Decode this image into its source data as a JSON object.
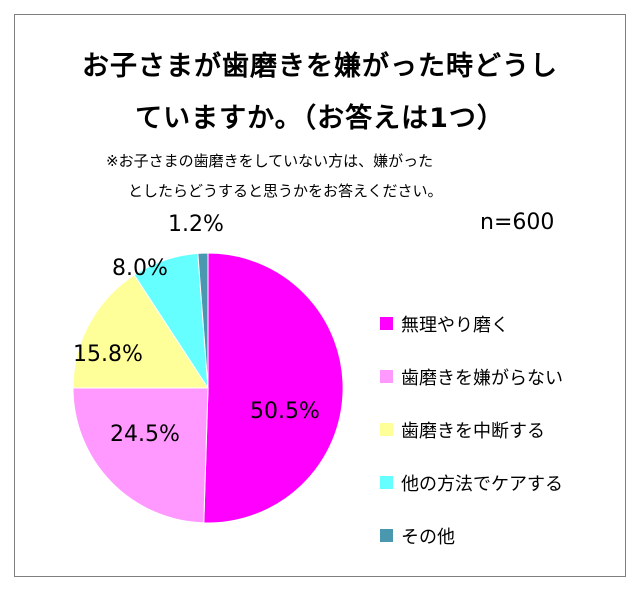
{
  "title_line1": "お子さまが歯磨きを嫌がった時どうし",
  "title_line2": "ていますか。（お答えは1つ）",
  "note_line1": "※お子さまの歯磨きをしていない方は、嫌がった",
  "note_line2": "としたらどうすると思うかをお答えください。",
  "sample_size": "n=600",
  "chart_data": {
    "type": "pie",
    "title": "お子さまが歯磨きを嫌がった時どうしていますか。（お答えは1つ）",
    "subtitle": "※お子さまの歯磨きをしていない方は、嫌がったとしたらどうすると思うかをお答えください。",
    "n": 600,
    "start": "12 o'clock",
    "direction": "clockwise",
    "legend_position": "right",
    "slices": [
      {
        "label": "無理やり磨く",
        "value": 50.5,
        "value_label": "50.5%",
        "color": "#ff00ff"
      },
      {
        "label": "歯磨きを嫌がらない",
        "value": 24.5,
        "value_label": "24.5%",
        "color": "#ff99ff"
      },
      {
        "label": "歯磨きを中断する",
        "value": 15.8,
        "value_label": "15.8%",
        "color": "#ffff99"
      },
      {
        "label": "他の方法でケアする",
        "value": 8.0,
        "value_label": "8.0%",
        "color": "#66ffff"
      },
      {
        "label": "その他",
        "value": 1.2,
        "value_label": "1.2%",
        "color": "#4a98b0"
      }
    ]
  }
}
